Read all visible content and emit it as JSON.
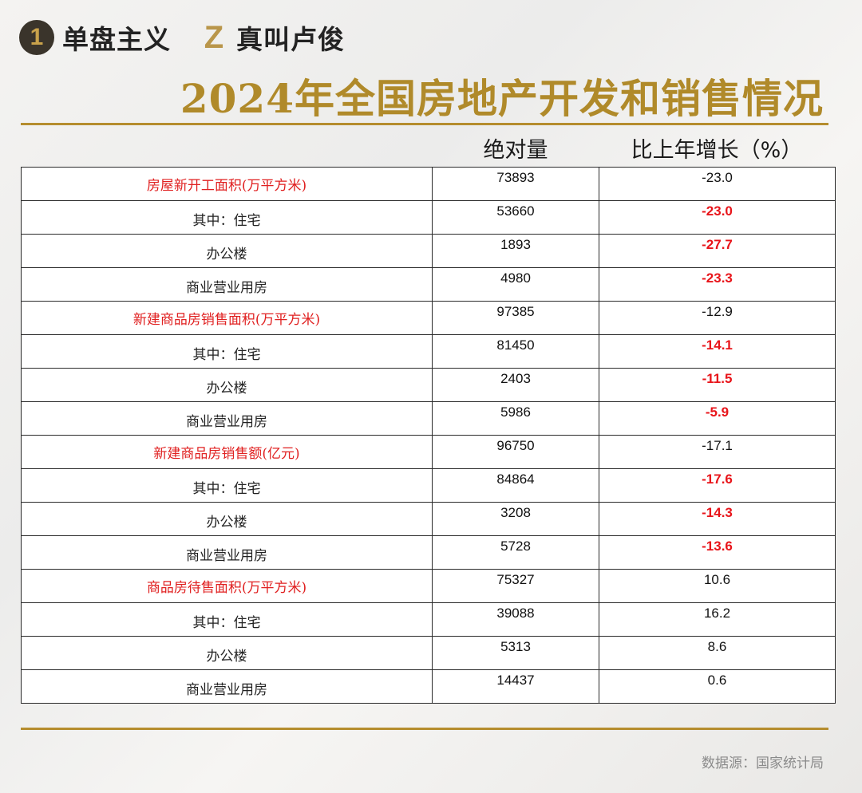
{
  "brand": {
    "badge1": "1",
    "name1": "单盘主义",
    "badge2": "Z",
    "name2": "真叫卢俊"
  },
  "title": "2024年全国房地产开发和销售情况",
  "headers": {
    "absolute": "绝对量",
    "growth": "比上年增长（%）"
  },
  "rows": [
    {
      "label": "房屋新开工面积(万平方米)",
      "category": true,
      "value": "73893",
      "growth": "-23.0",
      "growth_highlight": false
    },
    {
      "label": "其中：住宅",
      "category": false,
      "value": "53660",
      "growth": "-23.0",
      "growth_highlight": true
    },
    {
      "label": "办公楼",
      "category": false,
      "value": "1893",
      "growth": "-27.7",
      "growth_highlight": true
    },
    {
      "label": "商业营业用房",
      "category": false,
      "value": "4980",
      "growth": "-23.3",
      "growth_highlight": true
    },
    {
      "label": "新建商品房销售面积(万平方米)",
      "category": true,
      "value": "97385",
      "growth": "-12.9",
      "growth_highlight": false
    },
    {
      "label": "其中：住宅",
      "category": false,
      "value": "81450",
      "growth": "-14.1",
      "growth_highlight": true
    },
    {
      "label": "办公楼",
      "category": false,
      "value": "2403",
      "growth": "-11.5",
      "growth_highlight": true
    },
    {
      "label": "商业营业用房",
      "category": false,
      "value": "5986",
      "growth": "-5.9",
      "growth_highlight": true
    },
    {
      "label": "新建商品房销售额(亿元)",
      "category": true,
      "value": "96750",
      "growth": "-17.1",
      "growth_highlight": false
    },
    {
      "label": "其中：住宅",
      "category": false,
      "value": "84864",
      "growth": "-17.6",
      "growth_highlight": true
    },
    {
      "label": "办公楼",
      "category": false,
      "value": "3208",
      "growth": "-14.3",
      "growth_highlight": true
    },
    {
      "label": "商业营业用房",
      "category": false,
      "value": "5728",
      "growth": "-13.6",
      "growth_highlight": true
    },
    {
      "label": "商品房待售面积(万平方米)",
      "category": true,
      "value": "75327",
      "growth": "10.6",
      "growth_highlight": false
    },
    {
      "label": "其中：住宅",
      "category": false,
      "value": "39088",
      "growth": "16.2",
      "growth_highlight": false
    },
    {
      "label": "办公楼",
      "category": false,
      "value": "5313",
      "growth": "8.6",
      "growth_highlight": false
    },
    {
      "label": "商业营业用房",
      "category": false,
      "value": "14437",
      "growth": "0.6",
      "growth_highlight": false
    }
  ],
  "source": "数据源：国家统计局",
  "colors": {
    "gold": "#b08a2a",
    "category_red": "#e02020",
    "negative_red": "#e8141a"
  }
}
